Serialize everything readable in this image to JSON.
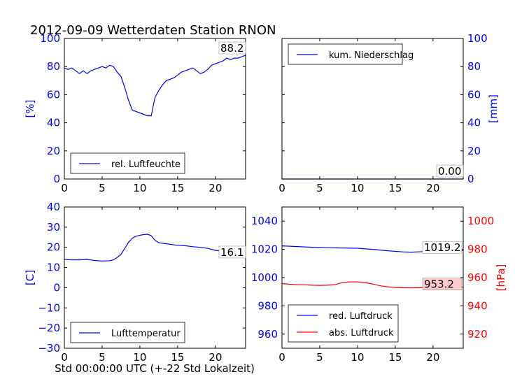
{
  "title": "2012-09-09 Wetterdaten Station RNON",
  "xlabel": "Std 00:00:00 UTC (+-22 Std Lokalzeit)",
  "colors": {
    "blue": "#0000ff",
    "red": "#ff0000",
    "text": "#000000",
    "annbox": "#ffcccc"
  },
  "chart_data": [
    {
      "type": "line",
      "ylabel": "[%]",
      "xlim": [
        0,
        24
      ],
      "ylim": [
        0,
        100
      ],
      "xticks": [
        "0",
        "5",
        "10",
        "15",
        "20"
      ],
      "yticks": [
        "0",
        "20",
        "40",
        "60",
        "80",
        "100"
      ],
      "legend": "lower-left",
      "annotation": "88.2",
      "series": [
        {
          "name": "rel. Luftfeuchte",
          "color": "#0000ff",
          "x": [
            0,
            0.5,
            1,
            1.5,
            2,
            2.5,
            3,
            3.5,
            4,
            4.5,
            5,
            5.5,
            6,
            6.5,
            7,
            7.5,
            8,
            8.5,
            9,
            9.5,
            10,
            10.5,
            11,
            11.5,
            12,
            12.5,
            13,
            13.5,
            14,
            14.5,
            15,
            15.5,
            16,
            16.5,
            17,
            17.5,
            18,
            18.5,
            19,
            19.5,
            20,
            20.5,
            21,
            21.5,
            22,
            22.5,
            23,
            23.5,
            24
          ],
          "y": [
            79,
            78,
            79,
            77,
            75,
            77,
            75,
            77,
            78,
            79,
            80,
            79,
            81,
            80,
            76,
            73,
            65,
            56,
            49,
            48,
            47,
            46,
            45,
            45,
            58,
            63,
            67,
            70,
            71,
            72,
            74,
            76,
            77,
            78,
            79,
            77,
            75,
            76,
            78,
            81,
            82,
            83,
            84,
            86,
            85,
            86,
            86,
            87,
            88
          ]
        }
      ]
    },
    {
      "type": "line",
      "ylabel": "[mm]",
      "xlim": [
        0,
        24
      ],
      "ylim": [
        0,
        100
      ],
      "xticks": [
        "0",
        "5",
        "10",
        "15",
        "20"
      ],
      "yticks": [
        "0",
        "20",
        "40",
        "60",
        "80",
        "100"
      ],
      "legend": "top-left",
      "annotation": "0.00",
      "series": [
        {
          "name": "kum. Niederschlag",
          "color": "#0000ff",
          "x": [
            0,
            24
          ],
          "y": [
            0,
            0
          ]
        }
      ]
    },
    {
      "type": "line",
      "ylabel": "[C]",
      "xlim": [
        0,
        24
      ],
      "ylim": [
        -30,
        40
      ],
      "xticks": [
        "0",
        "5",
        "10",
        "15",
        "20"
      ],
      "yticks": [
        "−30",
        "−20",
        "−10",
        "0",
        "10",
        "20",
        "30",
        "40"
      ],
      "legend": "lower-left",
      "annotation": "16.1",
      "series": [
        {
          "name": "Lufttemperatur",
          "color": "#0000ff",
          "x": [
            0,
            1,
            2,
            3,
            4,
            5,
            6,
            6.5,
            7,
            7.5,
            8,
            8.5,
            9,
            9.5,
            10,
            10.5,
            11,
            11.5,
            12,
            12.5,
            13,
            14,
            15,
            16,
            17,
            18,
            19,
            20,
            21,
            22,
            23,
            24
          ],
          "y": [
            14,
            13.8,
            13.8,
            14,
            13.5,
            13.2,
            13.4,
            13.8,
            15,
            16.5,
            19.5,
            22.5,
            24.5,
            25.5,
            26,
            26.3,
            26.5,
            25.8,
            23.5,
            22.3,
            22,
            21.5,
            21,
            20.8,
            20.3,
            20,
            19.5,
            18.5,
            18,
            17.5,
            16.8,
            16.1
          ]
        }
      ]
    },
    {
      "type": "line",
      "ylabel_right": "[hPa]",
      "xlim": [
        0,
        24
      ],
      "ylim": [
        950,
        1050
      ],
      "ylim_right": [
        910,
        1010
      ],
      "xticks": [
        "0",
        "5",
        "10",
        "15",
        "20"
      ],
      "yticks": [
        "960",
        "980",
        "1000",
        "1020",
        "1040"
      ],
      "yticks_right": [
        "920",
        "940",
        "960",
        "980",
        "1000"
      ],
      "legend": "lower-left",
      "annotations": [
        "1019.2",
        "953.2"
      ],
      "series": [
        {
          "name": "red. Luftdruck",
          "color": "#0000ff",
          "axis": "left",
          "x": [
            0,
            2,
            4,
            6,
            8,
            10,
            12,
            14,
            16,
            17,
            18,
            20,
            22,
            24
          ],
          "y": [
            1022.5,
            1022,
            1021.5,
            1021.2,
            1021,
            1020.8,
            1020,
            1019,
            1018.2,
            1018,
            1018.2,
            1018.6,
            1019,
            1019.2
          ]
        },
        {
          "name": "abs. Luftdruck",
          "color": "#ff0000",
          "axis": "right",
          "x": [
            0,
            1,
            2,
            3,
            4,
            5,
            6,
            7,
            8,
            9,
            10,
            11,
            12,
            13,
            14,
            15,
            16,
            17,
            18,
            19,
            20,
            21,
            22,
            23,
            24
          ],
          "y": [
            955.8,
            955.3,
            955,
            954.9,
            954.6,
            954.5,
            954.6,
            955,
            956.5,
            957,
            957,
            956.5,
            955.5,
            954.2,
            953.5,
            953,
            952.8,
            952.7,
            952.8,
            953,
            953.1,
            953.2,
            953.2,
            953.2,
            953.2
          ]
        }
      ]
    }
  ]
}
